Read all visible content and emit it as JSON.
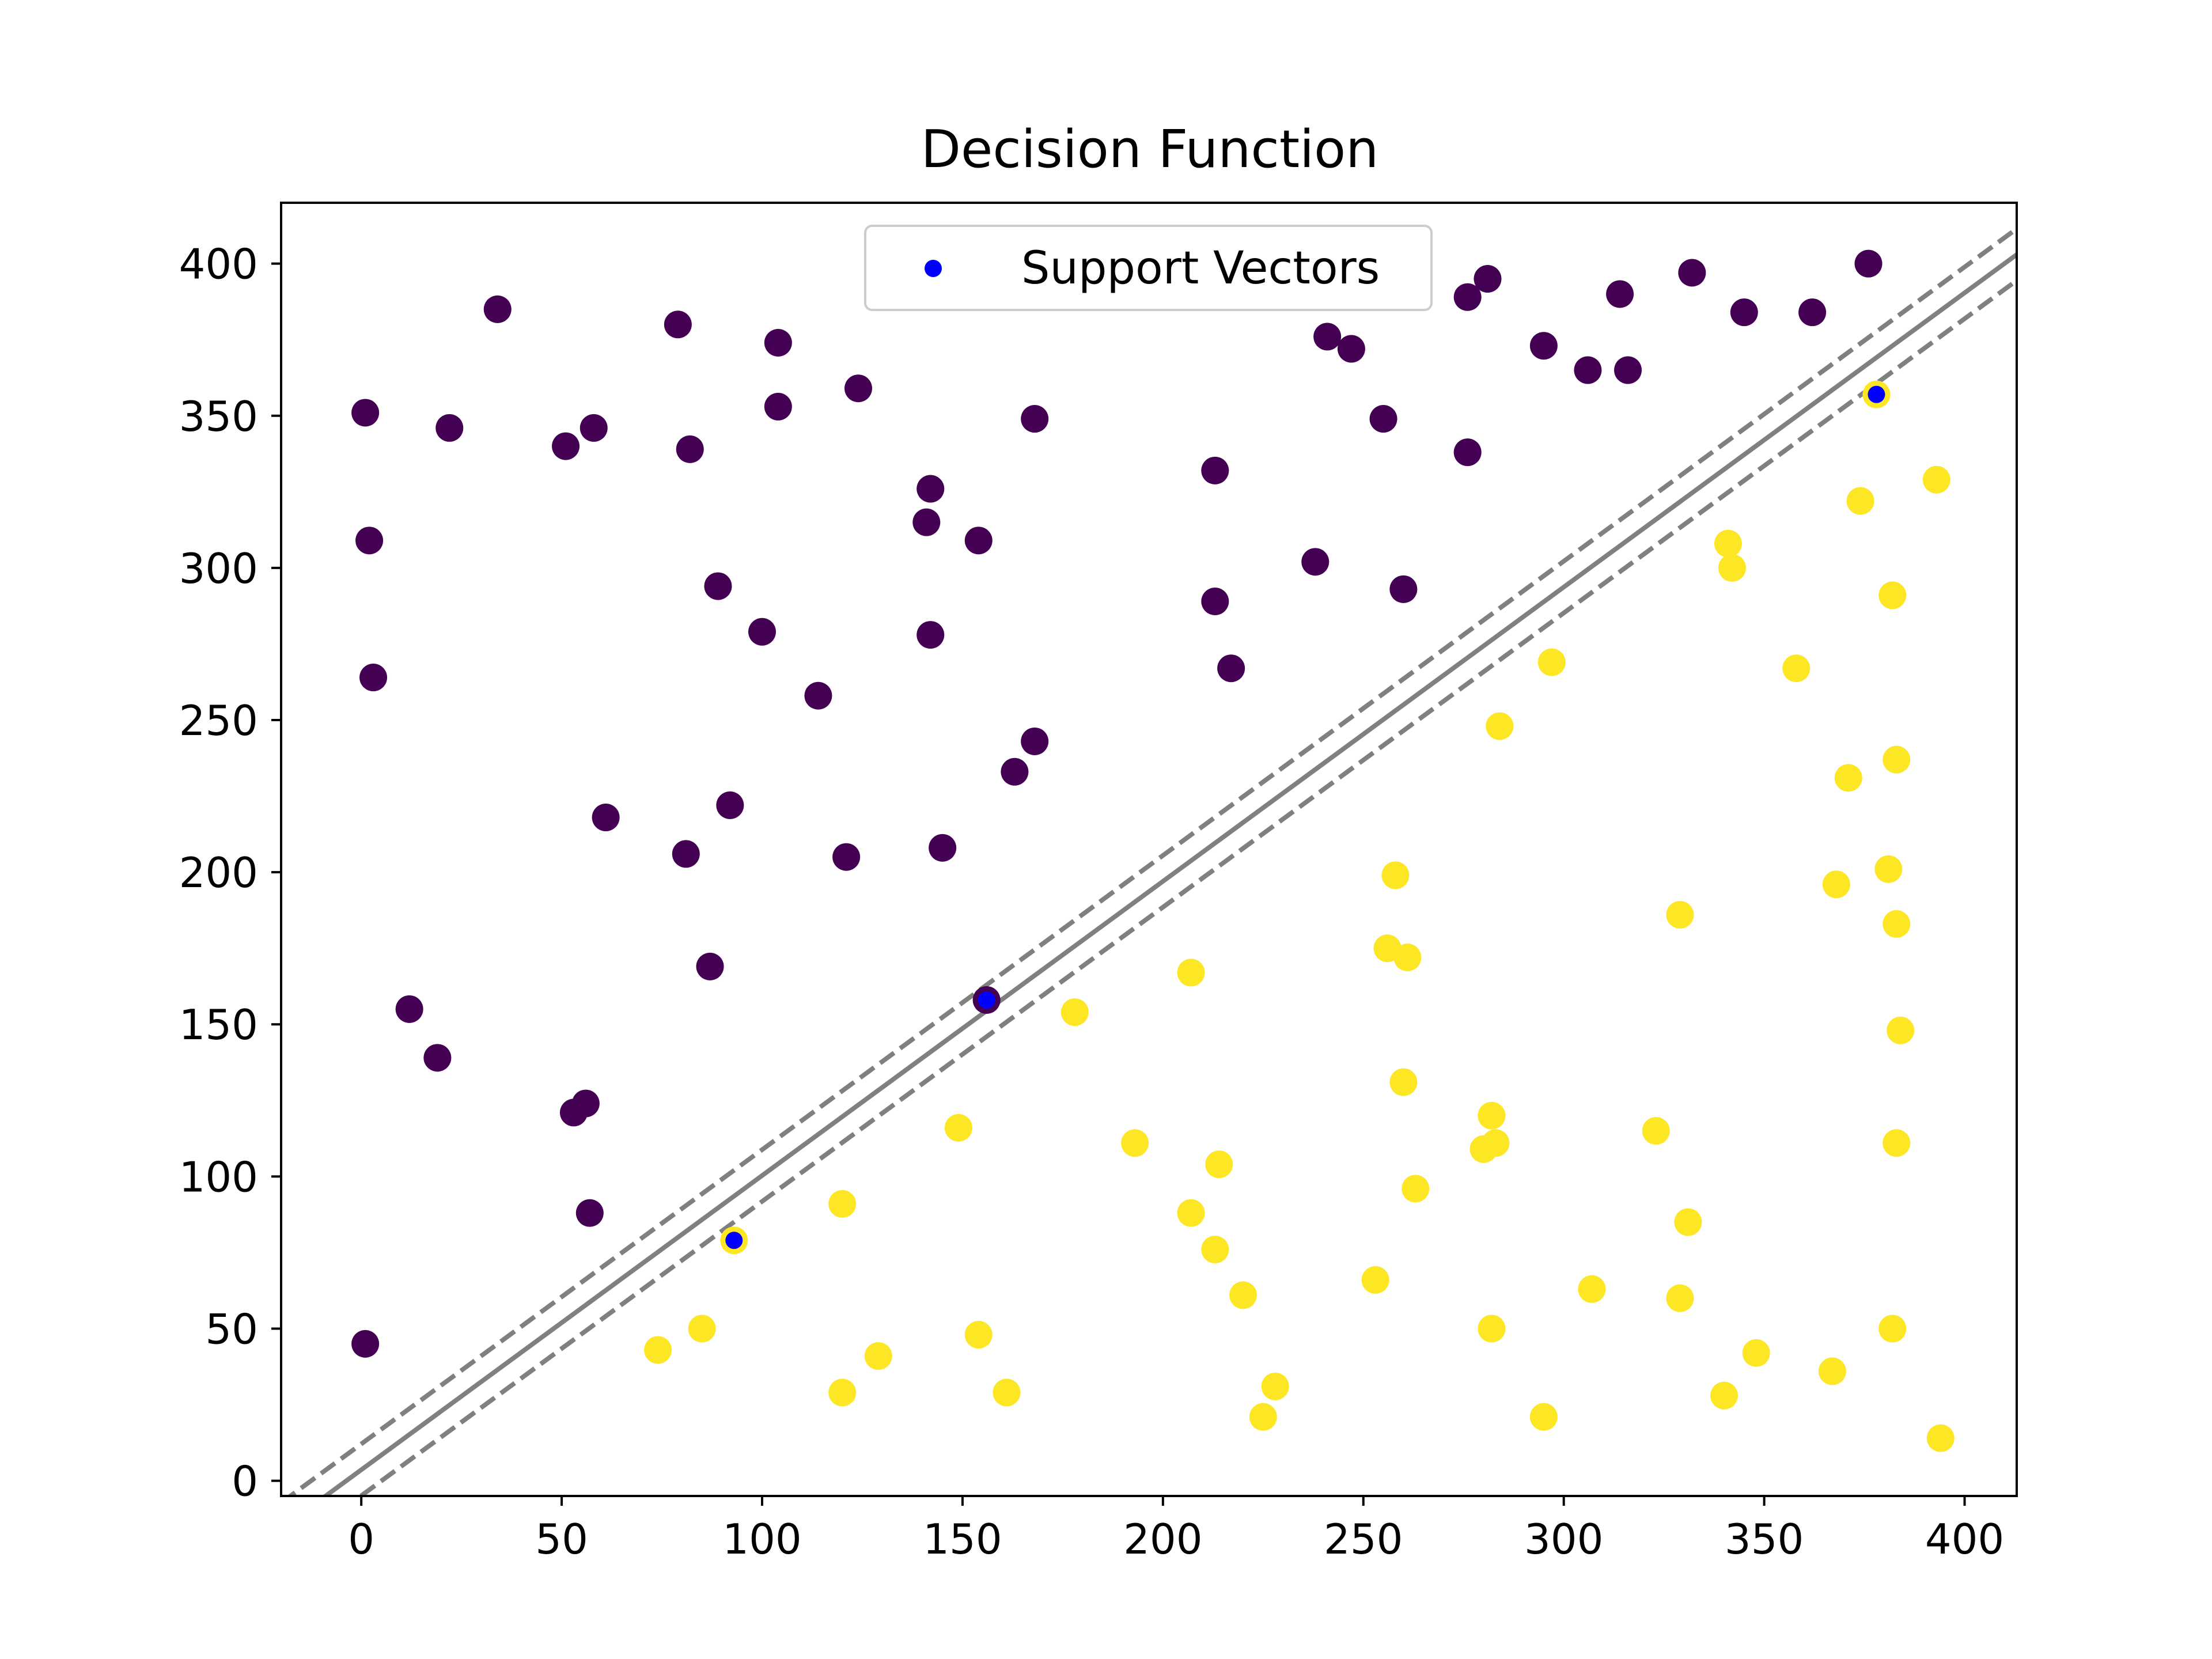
{
  "chart_data": {
    "type": "scatter",
    "title": "Decision Function",
    "xlabel": "",
    "ylabel": "",
    "xlim": [
      -20,
      413
    ],
    "ylim": [
      -5,
      420
    ],
    "xticks": [
      0,
      50,
      100,
      150,
      200,
      250,
      300,
      350,
      400
    ],
    "yticks": [
      0,
      50,
      100,
      150,
      200,
      250,
      300,
      350,
      400
    ],
    "grid": false,
    "legend": {
      "position": "top-center",
      "entries": [
        "Support Vectors"
      ]
    },
    "colors": {
      "class0": "#440154",
      "class1": "#fde725",
      "support_vectors": "#0000ff",
      "boundary": "#808080"
    },
    "decision_boundary": {
      "slope": 0.967,
      "intercept": 3.6,
      "margin_offset": 8.5,
      "styles": {
        "center": "solid",
        "margins": "dashed"
      }
    },
    "series": [
      {
        "class": 0,
        "color": "#440154",
        "x": [
          1,
          2,
          3,
          1,
          12,
          19,
          22,
          34,
          51,
          53,
          56,
          57,
          58,
          61,
          79,
          81,
          82,
          87,
          89,
          92,
          100,
          104,
          104,
          114,
          121,
          124,
          141,
          142,
          142,
          145,
          154,
          156,
          163,
          168,
          168,
          213,
          213,
          217,
          238,
          241,
          247,
          255,
          260,
          276,
          276,
          281,
          295,
          306,
          314,
          316,
          332,
          345,
          362,
          376
        ],
        "y": [
          45,
          309,
          264,
          351,
          155,
          139,
          346,
          385,
          340,
          121,
          124,
          88,
          346,
          218,
          380,
          206,
          339,
          169,
          294,
          222,
          279,
          374,
          353,
          258,
          205,
          359,
          315,
          278,
          326,
          208,
          309,
          158,
          233,
          243,
          349,
          332,
          289,
          267,
          302,
          376,
          372,
          349,
          293,
          338,
          389,
          395,
          373,
          365,
          390,
          365,
          397,
          384,
          384,
          400
        ]
      },
      {
        "class": 1,
        "color": "#fde725",
        "x": [
          74,
          85,
          93,
          120,
          120,
          129,
          149,
          154,
          161,
          178,
          193,
          207,
          207,
          213,
          214,
          220,
          225,
          228,
          253,
          256,
          258,
          260,
          261,
          263,
          280,
          282,
          282,
          283,
          284,
          295,
          297,
          307,
          323,
          329,
          329,
          331,
          340,
          341,
          342,
          348,
          358,
          367,
          368,
          371,
          374,
          378,
          381,
          382,
          382,
          383,
          383,
          383,
          384,
          393,
          394
        ],
        "y": [
          43,
          50,
          79,
          29,
          91,
          41,
          116,
          48,
          29,
          154,
          111,
          167,
          88,
          76,
          104,
          61,
          21,
          31,
          66,
          175,
          199,
          131,
          172,
          96,
          109,
          50,
          120,
          111,
          248,
          21,
          269,
          63,
          115,
          186,
          60,
          85,
          28,
          308,
          300,
          42,
          267,
          36,
          196,
          231,
          322,
          357,
          201,
          291,
          50,
          237,
          111,
          183,
          148,
          329,
          14
        ]
      }
    ],
    "support_vectors": {
      "color": "#0000ff",
      "x": [
        93,
        156,
        378
      ],
      "y": [
        79,
        158,
        357
      ]
    }
  }
}
